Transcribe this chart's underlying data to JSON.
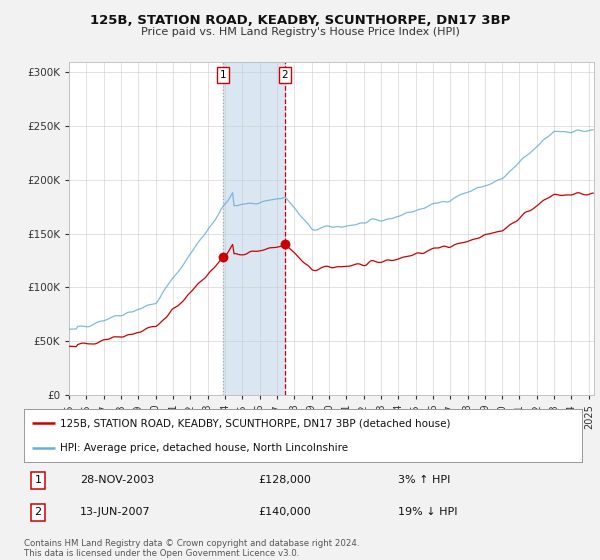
{
  "title": "125B, STATION ROAD, KEADBY, SCUNTHORPE, DN17 3BP",
  "subtitle": "Price paid vs. HM Land Registry's House Price Index (HPI)",
  "ylim": [
    0,
    310000
  ],
  "yticks": [
    0,
    50000,
    100000,
    150000,
    200000,
    250000,
    300000
  ],
  "xlim_start": 1995.0,
  "xlim_end": 2025.3,
  "sale1_date": 2003.91,
  "sale1_price": 128000,
  "sale1_label": "1",
  "sale1_hpi_diff": "3% ↑ HPI",
  "sale1_date_str": "28-NOV-2003",
  "sale2_date": 2007.45,
  "sale2_price": 140000,
  "sale2_label": "2",
  "sale2_hpi_diff": "19% ↓ HPI",
  "sale2_date_str": "13-JUN-2007",
  "red_color": "#cc0000",
  "blue_color": "#6baed6",
  "legend_label1": "125B, STATION ROAD, KEADBY, SCUNTHORPE, DN17 3BP (detached house)",
  "legend_label2": "HPI: Average price, detached house, North Lincolnshire",
  "footer": "Contains HM Land Registry data © Crown copyright and database right 2024.\nThis data is licensed under the Open Government Licence v3.0.",
  "bg_color": "#f2f2f2",
  "plot_bg_color": "#ffffff",
  "shade_color": "#d6e4f0"
}
